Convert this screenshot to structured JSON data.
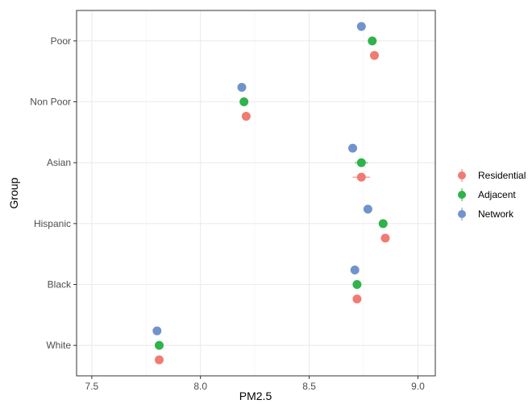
{
  "chart_data": {
    "type": "scatter",
    "xlabel": "PM2.5",
    "ylabel": "Group",
    "xlim": [
      7.43,
      9.08
    ],
    "x_ticks": [
      "7.5",
      "8.0",
      "8.5",
      "9.0"
    ],
    "x_tick_values": [
      7.5,
      8.0,
      8.5,
      9.0
    ],
    "categories": [
      "Poor",
      "Non Poor",
      "Asian",
      "Hispanic",
      "Black",
      "White"
    ],
    "grid": true,
    "legend_position": "right",
    "series": [
      {
        "name": "Residential",
        "color": "#F07B72",
        "values": [
          8.8,
          8.21,
          8.74,
          8.85,
          8.72,
          7.81
        ],
        "error": [
          0.0,
          0.0,
          0.04,
          0.0,
          0.0,
          0.0
        ]
      },
      {
        "name": "Adjacent",
        "color": "#2FB34A",
        "values": [
          8.79,
          8.2,
          8.74,
          8.84,
          8.72,
          7.81
        ],
        "error": [
          0.0,
          0.0,
          0.03,
          0.0,
          0.0,
          0.0
        ]
      },
      {
        "name": "Network",
        "color": "#7093CE",
        "values": [
          8.74,
          8.19,
          8.7,
          8.77,
          8.71,
          7.8
        ],
        "error": [
          0.0,
          0.0,
          0.0,
          0.0,
          0.0,
          0.0
        ]
      }
    ]
  }
}
